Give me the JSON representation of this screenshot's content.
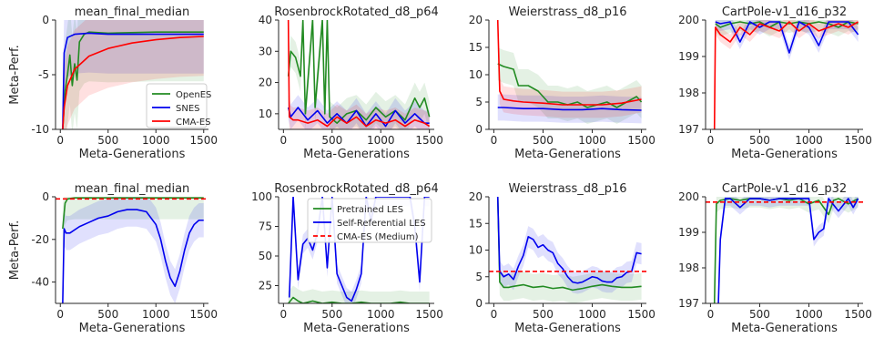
{
  "colors": {
    "openes": "#228b22",
    "snes": "#0000ee",
    "cmaes": "#ff0000",
    "pretrained": "#228b22",
    "selfref": "#0000ee",
    "baseline": "#ff0000"
  },
  "legend_top": {
    "items": [
      {
        "label": "OpenES",
        "color": "#228b22"
      },
      {
        "label": "SNES",
        "color": "#0000ee"
      },
      {
        "label": "CMA-ES",
        "color": "#ff0000"
      }
    ]
  },
  "legend_bottom": {
    "items": [
      {
        "label": "Pretrained LES",
        "color": "#228b22",
        "dash": false
      },
      {
        "label": "Self-Referential LES",
        "color": "#0000ee",
        "dash": false
      },
      {
        "label": "CMA-ES (Medium)",
        "color": "#ff0000",
        "dash": true
      }
    ]
  },
  "chart_data": [
    {
      "type": "line",
      "title": "mean_final_median",
      "xlabel": "Meta-Generations",
      "ylabel": "Meta-Perf.",
      "xlim": [
        -50,
        1550
      ],
      "ylim": [
        -10,
        0
      ],
      "xticks": [
        0,
        500,
        1000,
        1500
      ],
      "yticks": [
        -10,
        -5,
        0
      ],
      "series": [
        {
          "name": "OpenES",
          "color": "#228b22",
          "x": [
            25,
            50,
            75,
            100,
            125,
            150,
            175,
            200,
            250,
            300,
            500,
            1000,
            1500
          ],
          "y": [
            -10,
            -6.5,
            -5,
            -3.2,
            -6,
            -4,
            -5.5,
            -2,
            -1.3,
            -1.1,
            -1.2,
            -1.1,
            -1.1
          ]
        },
        {
          "name": "SNES",
          "color": "#0000ee",
          "x": [
            25,
            40,
            75,
            150,
            300,
            500,
            1000,
            1500
          ],
          "y": [
            -10,
            -3,
            -1.6,
            -1.3,
            -1.2,
            -1.3,
            -1.3,
            -1.3
          ]
        },
        {
          "name": "CMA-ES",
          "color": "#ff0000",
          "x": [
            25,
            40,
            75,
            150,
            300,
            500,
            750,
            1000,
            1250,
            1500
          ],
          "y": [
            -10,
            -8,
            -6,
            -4.5,
            -3.3,
            -2.6,
            -2.1,
            -1.8,
            -1.6,
            -1.5
          ]
        }
      ]
    },
    {
      "type": "line",
      "title": "RosenbrockRotated_d8_p64",
      "xlabel": "",
      "ylabel": "",
      "xlim": [
        -50,
        1550
      ],
      "ylim": [
        5,
        40
      ],
      "xticks": [
        0,
        500,
        1000,
        1500
      ],
      "yticks": [
        10,
        20,
        30,
        40
      ],
      "series": [
        {
          "name": "OpenES",
          "color": "#228b22",
          "x": [
            50,
            75,
            125,
            175,
            200,
            225,
            300,
            325,
            400,
            425,
            450,
            475,
            550,
            650,
            750,
            850,
            950,
            1050,
            1150,
            1250,
            1350,
            1400,
            1450,
            1500
          ],
          "y": [
            22,
            30,
            28,
            22,
            40,
            10,
            40,
            12,
            40,
            10,
            40,
            9,
            7,
            10,
            11,
            8,
            12,
            9,
            11,
            8,
            15,
            12,
            15,
            9
          ]
        },
        {
          "name": "SNES",
          "color": "#0000ee",
          "x": [
            50,
            75,
            150,
            250,
            350,
            450,
            550,
            650,
            750,
            850,
            950,
            1050,
            1150,
            1250,
            1350,
            1450,
            1500
          ],
          "y": [
            12,
            9,
            12,
            8,
            11,
            7,
            10,
            7,
            11,
            6,
            10,
            6,
            11,
            7,
            10,
            7,
            7
          ]
        },
        {
          "name": "CMA-ES",
          "color": "#ff0000",
          "x": [
            50,
            60,
            100,
            150,
            250,
            350,
            450,
            550,
            650,
            750,
            850,
            950,
            1050,
            1150,
            1250,
            1350,
            1450,
            1500
          ],
          "y": [
            40,
            9,
            8,
            8,
            7,
            8,
            6,
            9,
            7,
            9,
            6,
            8,
            7,
            8,
            6,
            8,
            7,
            6
          ]
        }
      ]
    },
    {
      "type": "line",
      "title": "Weierstrass_d8_p16",
      "xlabel": "",
      "ylabel": "",
      "xlim": [
        -50,
        1550
      ],
      "ylim": [
        0,
        20
      ],
      "xticks": [
        0,
        500,
        1000,
        1500
      ],
      "yticks": [
        0,
        5,
        10,
        15,
        20
      ],
      "series": [
        {
          "name": "OpenES",
          "color": "#228b22",
          "x": [
            40,
            100,
            200,
            250,
            350,
            450,
            550,
            650,
            750,
            850,
            950,
            1050,
            1150,
            1250,
            1350,
            1450,
            1500
          ],
          "y": [
            12,
            11.5,
            11,
            8,
            8,
            7,
            5,
            5,
            4.5,
            5,
            4,
            4.5,
            5,
            4,
            5,
            6,
            5
          ]
        },
        {
          "name": "SNES",
          "color": "#0000ee",
          "x": [
            40,
            100,
            300,
            500,
            700,
            900,
            1100,
            1300,
            1500
          ],
          "y": [
            4,
            4,
            3.8,
            3.8,
            3.6,
            3.6,
            3.8,
            3.6,
            3.5
          ]
        },
        {
          "name": "CMA-ES",
          "color": "#ff0000",
          "x": [
            40,
            60,
            100,
            200,
            300,
            500,
            700,
            900,
            1100,
            1300,
            1500
          ],
          "y": [
            20,
            7,
            5.5,
            5.2,
            5,
            4.8,
            4.5,
            4.5,
            4.5,
            4.8,
            5.5
          ]
        }
      ]
    },
    {
      "type": "line",
      "title": "CartPole-v1_d16_p32",
      "xlabel": "",
      "ylabel": "",
      "xlim": [
        -50,
        1550
      ],
      "ylim": [
        197,
        200
      ],
      "xticks": [
        0,
        500,
        1000,
        1500
      ],
      "yticks": [
        197,
        198,
        199,
        200
      ],
      "series": [
        {
          "name": "OpenES",
          "color": "#228b22",
          "x": [
            50,
            100,
            200,
            300,
            400,
            500,
            600,
            700,
            800,
            900,
            1000,
            1100,
            1200,
            1300,
            1400,
            1500
          ],
          "y": [
            199.9,
            199.8,
            199.9,
            199.95,
            199.9,
            199.95,
            199.8,
            199.95,
            199.9,
            199.95,
            199.9,
            199.95,
            199.9,
            199.8,
            199.95,
            199.9
          ]
        },
        {
          "name": "SNES",
          "color": "#0000ee",
          "x": [
            50,
            100,
            200,
            300,
            400,
            500,
            600,
            700,
            800,
            900,
            1000,
            1100,
            1200,
            1300,
            1400,
            1500
          ],
          "y": [
            199.95,
            199.9,
            199.95,
            199.4,
            199.95,
            199.8,
            199.95,
            199.95,
            199.1,
            199.95,
            199.8,
            199.3,
            199.95,
            199.95,
            199.95,
            199.6
          ]
        },
        {
          "name": "CMA-ES",
          "color": "#ff0000",
          "x": [
            40,
            50,
            100,
            200,
            300,
            400,
            500,
            600,
            700,
            800,
            900,
            1000,
            1100,
            1200,
            1300,
            1400,
            1500
          ],
          "y": [
            197,
            199.8,
            199.6,
            199.4,
            199.8,
            199.6,
            199.9,
            199.8,
            199.7,
            199.95,
            199.7,
            199.9,
            199.7,
            199.8,
            199.9,
            199.8,
            199.95
          ]
        }
      ]
    },
    {
      "type": "line",
      "title": "mean_final_median",
      "xlabel": "Meta-Generations",
      "ylabel": "Meta-Perf.",
      "xlim": [
        -50,
        1550
      ],
      "ylim": [
        -50,
        0
      ],
      "xticks": [
        0,
        500,
        1000,
        1500
      ],
      "yticks": [
        -40,
        -20,
        0
      ],
      "series": [
        {
          "name": "Pretrained LES",
          "color": "#228b22",
          "x": [
            25,
            50,
            75,
            150,
            500,
            1000,
            1500
          ],
          "y": [
            -15,
            -3,
            -1,
            -0.5,
            -0.5,
            -0.5,
            -0.5
          ]
        },
        {
          "name": "Self-Referential LES",
          "color": "#0000ee",
          "x": [
            25,
            40,
            60,
            100,
            200,
            300,
            400,
            500,
            600,
            700,
            800,
            900,
            1000,
            1050,
            1100,
            1150,
            1200,
            1250,
            1300,
            1350,
            1400,
            1450,
            1500
          ],
          "y": [
            -50,
            -15,
            -17,
            -17,
            -14,
            -12,
            -10,
            -9,
            -7,
            -6,
            -6,
            -7,
            -13,
            -20,
            -30,
            -38,
            -42,
            -35,
            -25,
            -17,
            -13,
            -11,
            -11
          ]
        },
        {
          "name": "CMA-ES (Medium)",
          "color": "#ff0000",
          "dash": true,
          "x": [
            -50,
            1550
          ],
          "y": [
            -1,
            -1
          ]
        }
      ]
    },
    {
      "type": "line",
      "title": "RosenbrockRotated_d8_p64",
      "xlabel": "",
      "ylabel": "",
      "xlim": [
        -50,
        1550
      ],
      "ylim": [
        10,
        100
      ],
      "xticks": [
        0,
        500,
        1000,
        1500
      ],
      "yticks": [
        25,
        50,
        75,
        100
      ],
      "series": [
        {
          "name": "Pretrained LES",
          "color": "#228b22",
          "x": [
            50,
            100,
            150,
            200,
            300,
            400,
            500,
            600,
            700,
            800,
            900,
            1000,
            1100,
            1200,
            1300,
            1400,
            1500
          ],
          "y": [
            10,
            15,
            12,
            10,
            12,
            10,
            11,
            10,
            10,
            11,
            10,
            10,
            10,
            11,
            10,
            10,
            10
          ]
        },
        {
          "name": "Self-Referential LES",
          "color": "#0000ee",
          "x": [
            60,
            100,
            150,
            200,
            250,
            300,
            350,
            400,
            450,
            500,
            550,
            600,
            650,
            700,
            750,
            800,
            850,
            900,
            950,
            1000,
            1100,
            1200,
            1300,
            1350,
            1400,
            1450,
            1500
          ],
          "y": [
            15,
            100,
            30,
            60,
            65,
            55,
            70,
            100,
            40,
            100,
            35,
            25,
            15,
            12,
            22,
            35,
            100,
            80,
            100,
            100,
            100,
            100,
            100,
            75,
            28,
            100,
            100
          ]
        },
        {
          "name": "CMA-ES (Medium)",
          "color": "#ff0000",
          "dash": true,
          "x": [
            -50,
            1550
          ],
          "y": [
            5,
            5
          ]
        }
      ]
    },
    {
      "type": "line",
      "title": "Weierstrass_d8_p16",
      "xlabel": "",
      "ylabel": "",
      "xlim": [
        -50,
        1550
      ],
      "ylim": [
        0,
        20
      ],
      "xticks": [
        0,
        500,
        1000,
        1500
      ],
      "yticks": [
        0,
        5,
        10,
        15,
        20
      ],
      "series": [
        {
          "name": "Pretrained LES",
          "color": "#228b22",
          "x": [
            40,
            60,
            100,
            150,
            200,
            300,
            400,
            500,
            600,
            700,
            800,
            900,
            1000,
            1100,
            1200,
            1300,
            1400,
            1500
          ],
          "y": [
            20,
            4,
            3,
            3,
            3.2,
            3.5,
            3,
            3.2,
            2.8,
            3,
            2.5,
            2.8,
            3.2,
            3.5,
            3.2,
            3,
            3,
            3.2
          ]
        },
        {
          "name": "Self-Referential LES",
          "color": "#0000ee",
          "x": [
            40,
            60,
            100,
            150,
            200,
            250,
            300,
            350,
            400,
            450,
            500,
            550,
            600,
            650,
            700,
            750,
            800,
            850,
            900,
            950,
            1000,
            1050,
            1100,
            1150,
            1200,
            1250,
            1300,
            1350,
            1400,
            1450,
            1500
          ],
          "y": [
            20,
            6,
            5,
            5.5,
            4.5,
            7,
            9,
            12.5,
            12,
            10.5,
            11,
            10,
            9.5,
            7.5,
            6.5,
            5,
            4,
            3.8,
            4,
            4.5,
            5,
            4.8,
            4.2,
            4,
            4,
            4.8,
            5,
            5.8,
            6,
            9.5,
            9.3
          ]
        },
        {
          "name": "CMA-ES (Medium)",
          "color": "#ff0000",
          "dash": true,
          "x": [
            -50,
            1550
          ],
          "y": [
            6,
            6
          ]
        }
      ]
    },
    {
      "type": "line",
      "title": "CartPole-v1_d16_p32",
      "xlabel": "",
      "ylabel": "",
      "xlim": [
        -50,
        1550
      ],
      "ylim": [
        197,
        200
      ],
      "xticks": [
        0,
        500,
        1000,
        1500
      ],
      "yticks": [
        197,
        198,
        199,
        200
      ],
      "series": [
        {
          "name": "Pretrained LES",
          "color": "#228b22",
          "x": [
            40,
            60,
            100,
            200,
            300,
            400,
            500,
            600,
            700,
            800,
            900,
            1000,
            1100,
            1200,
            1250,
            1300,
            1400,
            1500
          ],
          "y": [
            197,
            199.8,
            199.9,
            199.95,
            199.9,
            199.95,
            199.95,
            199.9,
            199.95,
            199.9,
            199.95,
            199.8,
            199.9,
            199.5,
            199.9,
            199.95,
            199.8,
            199.95
          ]
        },
        {
          "name": "Self-Referential LES",
          "color": "#0000ee",
          "x": [
            80,
            100,
            150,
            200,
            300,
            400,
            500,
            600,
            700,
            800,
            900,
            1000,
            1050,
            1100,
            1150,
            1200,
            1300,
            1400,
            1450,
            1500
          ],
          "y": [
            197,
            198.8,
            199.95,
            199.95,
            199.7,
            199.95,
            199.95,
            199.9,
            199.95,
            199.95,
            199.95,
            199.95,
            198.8,
            199,
            199.1,
            199.95,
            199.6,
            199.95,
            199.7,
            199.95
          ]
        },
        {
          "name": "CMA-ES (Medium)",
          "color": "#ff0000",
          "dash": true,
          "x": [
            -50,
            1550
          ],
          "y": [
            199.85,
            199.85
          ]
        }
      ]
    }
  ]
}
